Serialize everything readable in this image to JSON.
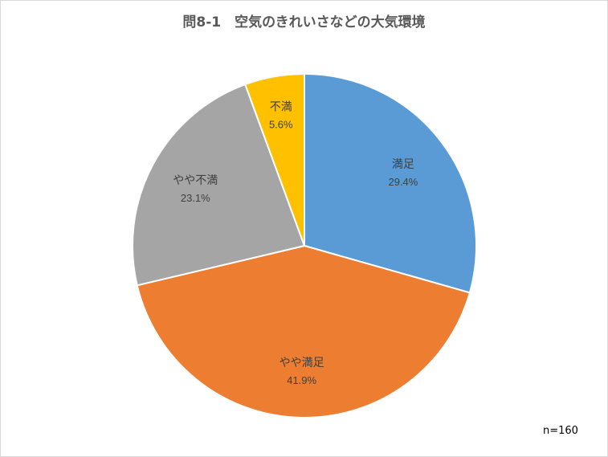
{
  "chart_data": {
    "type": "pie",
    "title": "問8-1　空気のきれいさなどの大気環境",
    "note": "n=160",
    "slices": [
      {
        "label": "満足",
        "value": 29.4,
        "value_label": "29.4%",
        "color": "#5b9bd5"
      },
      {
        "label": "やや満足",
        "value": 41.9,
        "value_label": "41.9%",
        "color": "#ed7d31"
      },
      {
        "label": "やや不満",
        "value": 23.1,
        "value_label": "23.1%",
        "color": "#a5a5a5"
      },
      {
        "label": "不満",
        "value": 5.6,
        "value_label": "5.6%",
        "color": "#ffc000"
      }
    ],
    "start_angle_deg": 0,
    "direction": "clockwise",
    "legend": "none"
  }
}
